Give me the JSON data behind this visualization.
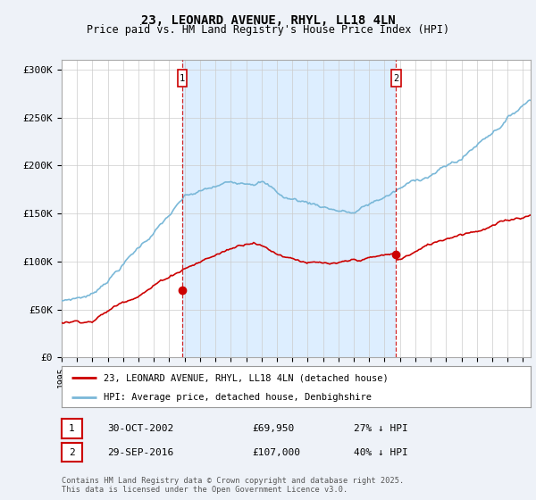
{
  "title": "23, LEONARD AVENUE, RHYL, LL18 4LN",
  "subtitle": "Price paid vs. HM Land Registry's House Price Index (HPI)",
  "xlim_start": 1995.0,
  "xlim_end": 2025.5,
  "ylim": [
    0,
    310000
  ],
  "yticks": [
    0,
    50000,
    100000,
    150000,
    200000,
    250000,
    300000
  ],
  "ytick_labels": [
    "£0",
    "£50K",
    "£100K",
    "£150K",
    "£200K",
    "£250K",
    "£300K"
  ],
  "hpi_color": "#7ab8d8",
  "sale_color": "#cc0000",
  "fill_color": "#ddeeff",
  "marker1_x": 2002.83,
  "marker1_y": 69950,
  "marker1_label": "1",
  "marker2_x": 2016.75,
  "marker2_y": 107000,
  "marker2_label": "2",
  "annotation1_date": "30-OCT-2002",
  "annotation1_price": "£69,950",
  "annotation1_hpi": "27% ↓ HPI",
  "annotation2_date": "29-SEP-2016",
  "annotation2_price": "£107,000",
  "annotation2_hpi": "40% ↓ HPI",
  "legend_sale": "23, LEONARD AVENUE, RHYL, LL18 4LN (detached house)",
  "legend_hpi": "HPI: Average price, detached house, Denbighshire",
  "footer": "Contains HM Land Registry data © Crown copyright and database right 2025.\nThis data is licensed under the Open Government Licence v3.0.",
  "background_color": "#eef2f8",
  "plot_bg_color": "#ffffff",
  "grid_color": "#cccccc"
}
